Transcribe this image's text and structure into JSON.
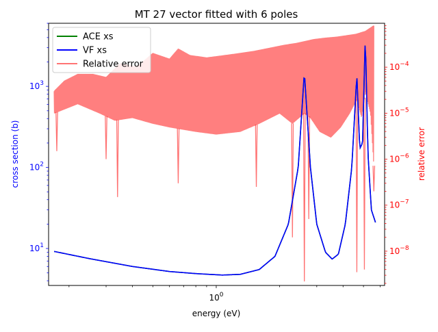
{
  "chart_data": {
    "type": "line",
    "title": "MT 27 vector fitted with 6 poles",
    "xlabel": "energy (eV)",
    "ylabel_left": "cross section (b)",
    "ylabel_right": "relative error",
    "x_scale": "log",
    "y_left_scale": "log",
    "y_right_scale": "log",
    "xlim": [
      0.16,
      6.3
    ],
    "ylim_left": [
      3.5,
      6000
    ],
    "ylim_right": [
      1.8e-09,
      0.0009
    ],
    "x_ticks": [
      {
        "value": 1.0,
        "label": "10^0"
      }
    ],
    "y_left_ticks": [
      {
        "value": 10,
        "label": "10^1"
      },
      {
        "value": 100,
        "label": "10^2"
      },
      {
        "value": 1000,
        "label": "10^3"
      }
    ],
    "y_right_ticks": [
      {
        "value": 1e-08,
        "label": "10^-8"
      },
      {
        "value": 1e-07,
        "label": "10^-7"
      },
      {
        "value": 1e-06,
        "label": "10^-6"
      },
      {
        "value": 1e-05,
        "label": "10^-5"
      },
      {
        "value": 0.0001,
        "label": "10^-4"
      }
    ],
    "grid": false,
    "legend": {
      "placement": "top-left",
      "entries": [
        {
          "label": "ACE xs",
          "color": "#008000"
        },
        {
          "label": "VF xs",
          "color": "#0000ff"
        },
        {
          "label": "Relative error",
          "color": "#ff0000"
        }
      ]
    },
    "colors": {
      "ace": "#008000",
      "vf": "#0000ff",
      "error": "#ff0000",
      "left_axis": "#0000ff",
      "right_axis": "#ff0000"
    },
    "series": [
      {
        "name": "ACE xs",
        "axis": "left",
        "x": [
          0.17,
          0.25,
          0.4,
          0.6,
          0.8,
          1.07,
          1.3,
          1.6,
          1.9,
          2.2,
          2.45,
          2.62,
          2.8,
          3.0,
          3.3,
          3.55,
          3.8,
          4.1,
          4.4,
          4.65,
          4.8,
          4.95,
          5.1,
          5.25,
          5.45,
          5.7
        ],
        "y": [
          9.2,
          7.5,
          6.0,
          5.2,
          4.9,
          4.7,
          4.8,
          5.5,
          8,
          20,
          100,
          1500,
          100,
          20,
          9,
          7.4,
          8.5,
          20,
          100,
          1400,
          170,
          200,
          4300,
          150,
          30,
          21
        ]
      },
      {
        "name": "VF xs",
        "axis": "left",
        "x": [
          0.17,
          0.25,
          0.4,
          0.6,
          0.8,
          1.07,
          1.3,
          1.6,
          1.9,
          2.2,
          2.45,
          2.62,
          2.8,
          3.0,
          3.3,
          3.55,
          3.8,
          4.1,
          4.4,
          4.65,
          4.8,
          4.95,
          5.1,
          5.25,
          5.45,
          5.7
        ],
        "y": [
          9.2,
          7.5,
          6.0,
          5.2,
          4.9,
          4.7,
          4.8,
          5.5,
          8,
          20,
          100,
          1500,
          100,
          20,
          9,
          7.4,
          8.5,
          20,
          100,
          1400,
          170,
          200,
          4300,
          150,
          30,
          21
        ]
      },
      {
        "name": "Relative error",
        "axis": "right",
        "upper_envelope": {
          "x": [
            0.17,
            0.19,
            0.22,
            0.26,
            0.3,
            0.35,
            0.42,
            0.5,
            0.6,
            0.66,
            0.75,
            0.9,
            1.0,
            1.2,
            1.5,
            1.8,
            2.1,
            2.4,
            2.62,
            2.9,
            3.3,
            3.7,
            4.1,
            4.6,
            5.1,
            5.6
          ],
          "y": [
            3e-05,
            5e-05,
            7e-05,
            7e-05,
            6e-05,
            0.00012,
            0.0001,
            0.0002,
            0.00015,
            0.00025,
            0.00018,
            0.00016,
            0.00017,
            0.00019,
            0.00022,
            0.00026,
            0.0003,
            0.00033,
            0.00036,
            0.0004,
            0.00043,
            0.00045,
            0.00048,
            0.00052,
            0.0006,
            0.0008
          ]
        },
        "lower_envelope": {
          "x": [
            0.17,
            0.22,
            0.28,
            0.33,
            0.4,
            0.5,
            0.6,
            0.8,
            1.0,
            1.3,
            1.6,
            2.0,
            2.3,
            2.62,
            2.8,
            3.1,
            3.5,
            3.9,
            4.3,
            4.65,
            4.9,
            5.1,
            5.4,
            5.7
          ],
          "y": [
            1e-05,
            1.6e-05,
            1e-05,
            7e-06,
            8e-06,
            6e-06,
            5e-06,
            4e-06,
            3.5e-06,
            4e-06,
            6e-06,
            1e-05,
            6e-06,
            1e-05,
            8e-06,
            4e-06,
            3e-06,
            5e-06,
            1e-05,
            2e-05,
            8e-06,
            3e-05,
            1e-05,
            2e-07
          ]
        },
        "dips": [
          {
            "x": 0.175,
            "y": 1.5e-06
          },
          {
            "x": 0.3,
            "y": 1e-06
          },
          {
            "x": 0.34,
            "y": 1.5e-07
          },
          {
            "x": 0.66,
            "y": 3e-07
          },
          {
            "x": 1.55,
            "y": 2.5e-07
          },
          {
            "x": 2.3,
            "y": 2e-08
          },
          {
            "x": 2.62,
            "y": 2.2e-09
          },
          {
            "x": 2.75,
            "y": 5e-08
          },
          {
            "x": 4.65,
            "y": 3.5e-09
          },
          {
            "x": 5.05,
            "y": 4e-09
          },
          {
            "x": 5.6,
            "y": 2e-07
          }
        ]
      }
    ]
  }
}
